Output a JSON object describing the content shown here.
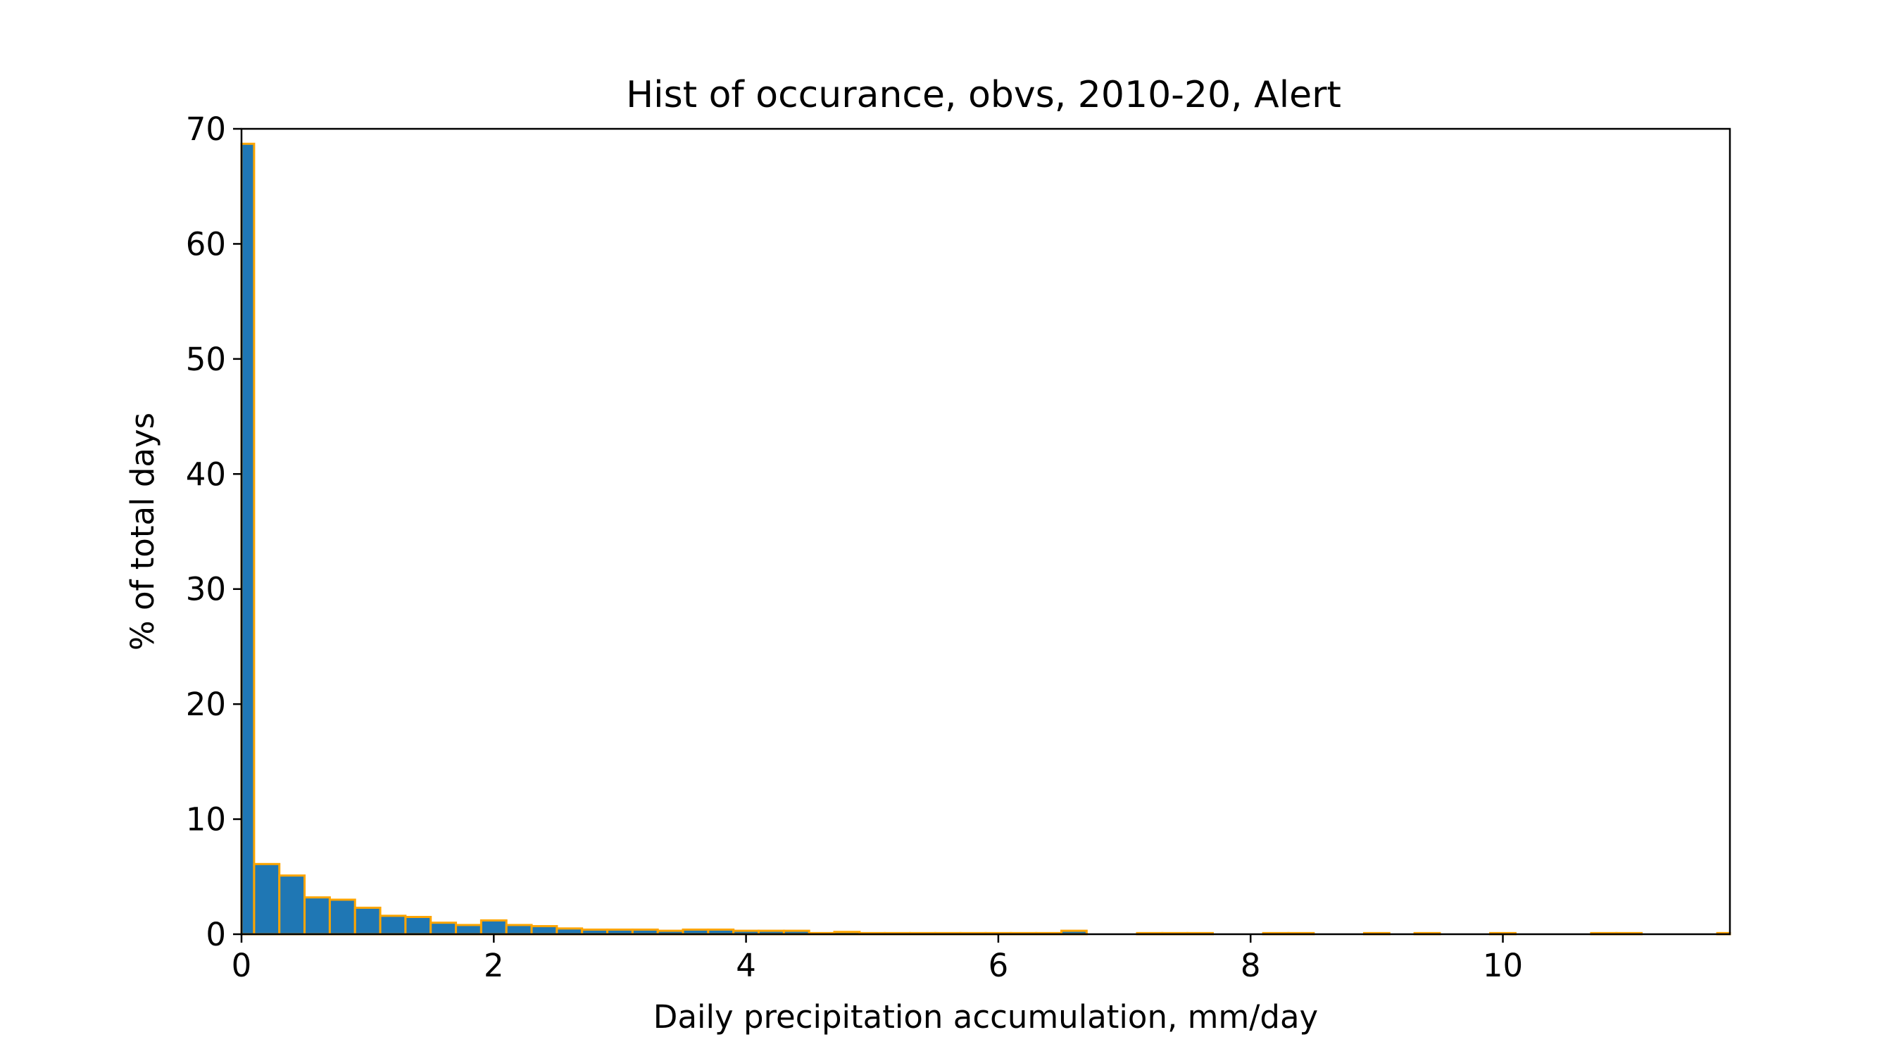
{
  "chart_data": {
    "type": "bar",
    "title": "Hist of occurance, obvs, 2010-20, Alert",
    "xlabel": "Daily precipitation accumulation, mm/day",
    "ylabel": "% of total days",
    "xlim": [
      0,
      11.8
    ],
    "ylim": [
      0,
      70
    ],
    "x_ticks": [
      0,
      2,
      4,
      6,
      8,
      10
    ],
    "y_ticks": [
      0,
      10,
      20,
      30,
      40,
      50,
      60,
      70
    ],
    "grid": false,
    "bin_width": 0.2,
    "bin_starts": [
      0,
      0.1,
      0.3,
      0.5,
      0.7,
      0.9,
      1.1,
      1.3,
      1.5,
      1.7,
      1.9,
      2.1,
      2.3,
      2.5,
      2.7,
      2.9,
      3.1,
      3.3,
      3.5,
      3.7,
      3.9,
      4.1,
      4.3,
      4.5,
      4.7,
      4.9,
      5.1,
      5.3,
      5.5,
      5.7,
      5.9,
      6.1,
      6.3,
      6.5,
      6.7,
      6.9,
      7.1,
      7.3,
      7.5,
      7.7,
      7.9,
      8.1,
      8.3,
      8.5,
      8.7,
      8.9,
      9.1,
      9.3,
      9.5,
      9.7,
      9.9,
      10.1,
      10.3,
      10.5,
      10.7,
      10.9,
      11.1,
      11.3,
      11.5,
      11.7
    ],
    "values": [
      68.7,
      6.1,
      5.1,
      3.2,
      3.0,
      2.3,
      1.6,
      1.5,
      1.0,
      0.8,
      1.2,
      0.8,
      0.7,
      0.5,
      0.4,
      0.4,
      0.4,
      0.3,
      0.4,
      0.4,
      0.3,
      0.3,
      0.3,
      0.1,
      0.2,
      0.1,
      0.1,
      0.1,
      0.1,
      0.1,
      0.1,
      0.1,
      0.1,
      0.3,
      0.0,
      0.0,
      0.1,
      0.1,
      0.1,
      0.0,
      0.0,
      0.1,
      0.1,
      0.0,
      0.0,
      0.1,
      0.0,
      0.1,
      0.0,
      0.0,
      0.1,
      0.0,
      0.0,
      0.0,
      0.1,
      0.1,
      0.0,
      0.0,
      0.0,
      0.1
    ],
    "bar_color": "#1f77b4",
    "edge_color": "#ffa500"
  }
}
